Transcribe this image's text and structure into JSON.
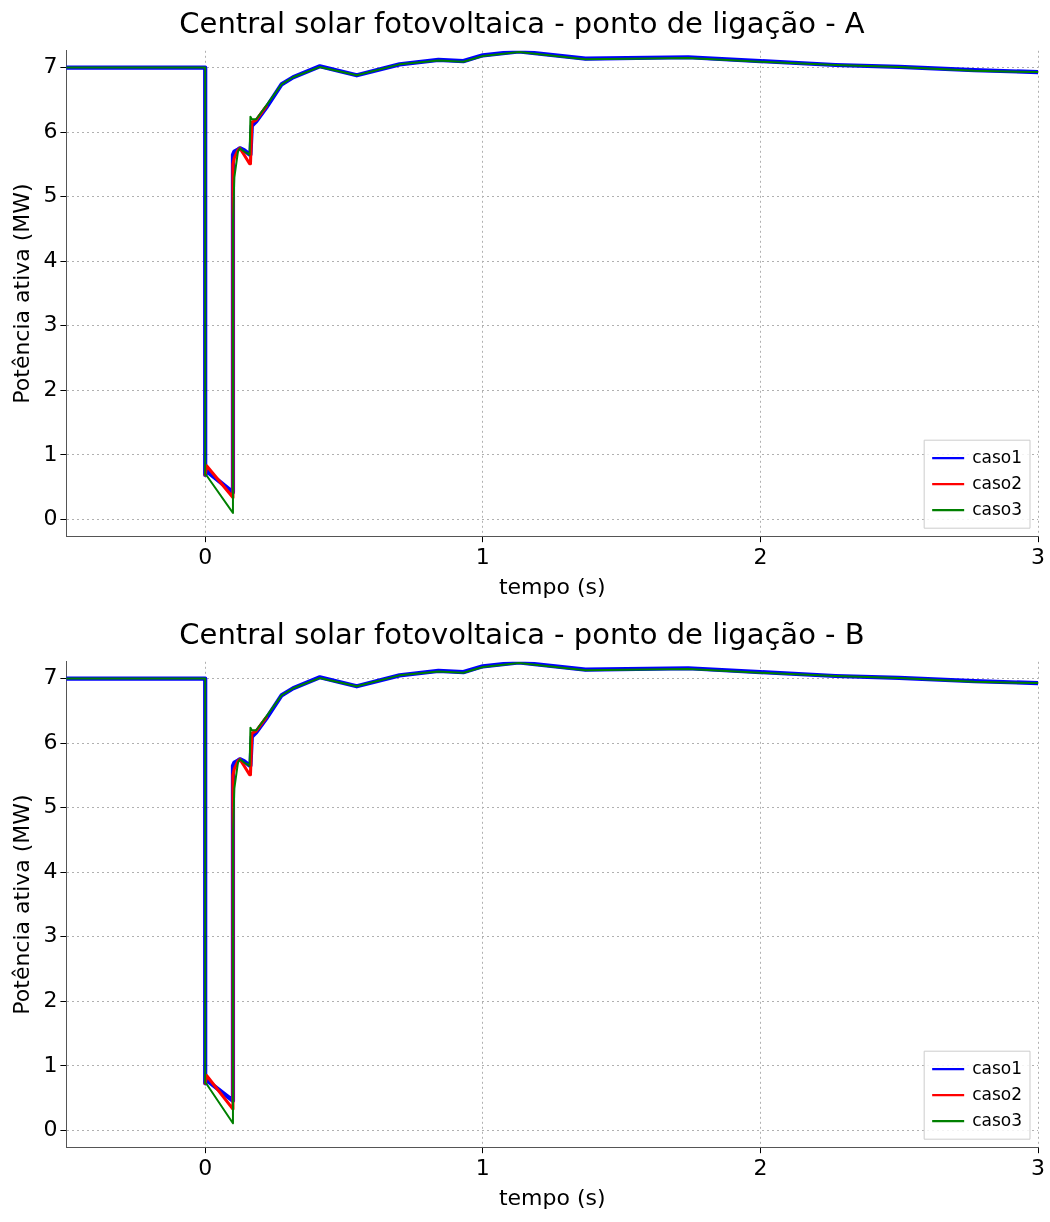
{
  "chart_data": [
    {
      "type": "line",
      "title": "Central solar fotovoltaica - ponto de ligação - A",
      "xlabel": "tempo (s)",
      "ylabel": "Potência ativa (MW)",
      "x": [
        -0.5,
        0,
        0,
        0.005,
        0.1,
        0.1,
        0.105,
        0.118,
        0.125,
        0.14,
        0.16,
        0.163,
        0.168,
        0.184,
        0.22,
        0.275,
        0.317,
        0.413,
        0.546,
        0.7,
        0.84,
        0.93,
        1.0,
        1.13,
        1.37,
        1.74,
        2.0,
        2.27,
        2.5,
        2.77,
        3.0
      ],
      "series": [
        {
          "name": "caso1",
          "color": "#0000ff",
          "values": [
            7,
            7,
            0.69,
            0.75,
            0.42,
            5.65,
            5.7,
            5.73,
            5.75,
            5.72,
            5.65,
            5.65,
            6.1,
            6.17,
            6.38,
            6.74,
            6.85,
            7.02,
            6.88,
            7.05,
            7.12,
            7.1,
            7.19,
            7.25,
            7.14,
            7.16,
            7.1,
            7.04,
            7.01,
            6.96,
            6.93
          ]
        },
        {
          "name": "caso2",
          "color": "#ff0000",
          "values": [
            null,
            null,
            0.69,
            0.83,
            0.34,
            5.5,
            5.6,
            5.72,
            5.75,
            5.65,
            5.51,
            5.51,
            6.15,
            6.19,
            6.4,
            null,
            null,
            null,
            null,
            null,
            null,
            null,
            null,
            null,
            null,
            null,
            null,
            null,
            null,
            null,
            null
          ]
        },
        {
          "name": "caso3",
          "color": "#008000",
          "values": [
            7,
            7,
            0.69,
            0.68,
            0.1,
            4.6,
            5.3,
            5.7,
            5.75,
            5.7,
            5.65,
            6.24,
            6.2,
            6.2,
            6.41,
            6.74,
            6.85,
            7.01,
            6.88,
            7.05,
            7.11,
            7.09,
            7.18,
            7.24,
            7.13,
            7.15,
            7.09,
            7.04,
            7.01,
            6.95,
            6.93
          ]
        }
      ],
      "xlim": [
        -0.5,
        3
      ],
      "xticks": [
        0,
        1,
        2,
        3
      ],
      "ylim": [
        -0.26,
        7.26
      ],
      "yticks": [
        0,
        1,
        2,
        3,
        4,
        5,
        6,
        7
      ],
      "grid": true,
      "legend": "bottom right",
      "marker": "none",
      "line_style": "solid"
    },
    {
      "type": "line",
      "title": "Central solar fotovoltaica - ponto de ligação - B",
      "xlabel": "tempo (s)",
      "ylabel": "Potência ativa (MW)",
      "x": [
        -0.5,
        0,
        0,
        0.005,
        0.1,
        0.1,
        0.105,
        0.118,
        0.125,
        0.14,
        0.16,
        0.163,
        0.168,
        0.184,
        0.22,
        0.275,
        0.317,
        0.413,
        0.546,
        0.7,
        0.84,
        0.93,
        1.0,
        1.13,
        1.37,
        1.74,
        2.0,
        2.27,
        2.5,
        2.77,
        3.0
      ],
      "series": [
        {
          "name": "caso1",
          "color": "#0000ff",
          "values": [
            7,
            7,
            0.73,
            0.78,
            0.46,
            5.65,
            5.7,
            5.73,
            5.75,
            5.72,
            5.65,
            5.65,
            6.1,
            6.17,
            6.38,
            6.74,
            6.85,
            7.02,
            6.88,
            7.05,
            7.12,
            7.1,
            7.19,
            7.25,
            7.14,
            7.16,
            7.1,
            7.04,
            7.01,
            6.96,
            6.93
          ]
        },
        {
          "name": "caso2",
          "color": "#ff0000",
          "values": [
            null,
            null,
            0.73,
            0.85,
            0.33,
            5.5,
            5.6,
            5.72,
            5.75,
            5.65,
            5.51,
            5.51,
            6.15,
            6.19,
            6.4,
            null,
            null,
            null,
            null,
            null,
            null,
            null,
            null,
            null,
            null,
            null,
            null,
            null,
            null,
            null,
            null
          ]
        },
        {
          "name": "caso3",
          "color": "#008000",
          "values": [
            7,
            7,
            0.73,
            0.72,
            0.11,
            4.6,
            5.3,
            5.7,
            5.75,
            5.7,
            5.65,
            6.24,
            6.2,
            6.2,
            6.41,
            6.74,
            6.85,
            7.01,
            6.88,
            7.05,
            7.11,
            7.09,
            7.18,
            7.24,
            7.13,
            7.15,
            7.09,
            7.04,
            7.01,
            6.95,
            6.93
          ]
        }
      ],
      "xlim": [
        -0.5,
        3
      ],
      "xticks": [
        0,
        1,
        2,
        3
      ],
      "ylim": [
        -0.26,
        7.26
      ],
      "yticks": [
        0,
        1,
        2,
        3,
        4,
        5,
        6,
        7
      ],
      "grid": true,
      "legend": "bottom right",
      "marker": "none",
      "line_style": "solid"
    }
  ]
}
